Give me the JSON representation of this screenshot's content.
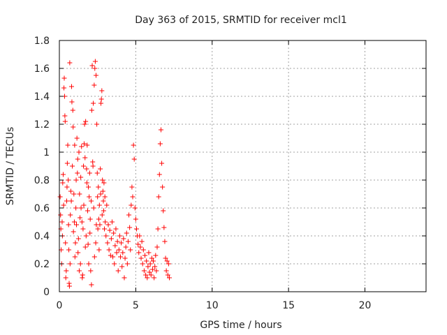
{
  "chart_data": {
    "type": "scatter",
    "title": "Day 363 of 2015, SRMTID for receiver mcl1",
    "xlabel": "GPS time / hours",
    "ylabel": "SRMTID / TECUs",
    "xlim": [
      0,
      24
    ],
    "ylim": [
      0,
      1.8
    ],
    "xticks": [
      0,
      5,
      10,
      15,
      20
    ],
    "xtick_labels": [
      "0",
      "5",
      "10",
      "15",
      "20"
    ],
    "yticks": [
      0,
      0.2,
      0.4,
      0.6,
      0.8,
      1.0,
      1.2,
      1.4,
      1.6,
      1.8
    ],
    "ytick_labels": [
      "0",
      "0.2",
      "0.4",
      "0.6",
      "0.8",
      "1",
      "1.2",
      "1.4",
      "1.6",
      "1.8"
    ],
    "grid": true,
    "marker": "+",
    "colors": {
      "series": "#ff0000",
      "grid": "#a0a0a0",
      "axes": "#000000"
    },
    "series": [
      {
        "name": "SRMTID",
        "points": [
          [
            0.05,
            0.68
          ],
          [
            0.08,
            0.55
          ],
          [
            0.1,
            0.45
          ],
          [
            0.12,
            0.3
          ],
          [
            0.15,
            0.2
          ],
          [
            0.18,
            0.5
          ],
          [
            0.2,
            0.4
          ],
          [
            0.22,
            0.78
          ],
          [
            0.25,
            0.84
          ],
          [
            0.28,
            0.62
          ],
          [
            0.3,
            1.46
          ],
          [
            0.32,
            1.53
          ],
          [
            0.34,
            1.4
          ],
          [
            0.36,
            1.26
          ],
          [
            0.38,
            1.22
          ],
          [
            0.4,
            0.35
          ],
          [
            0.42,
            0.1
          ],
          [
            0.45,
            0.15
          ],
          [
            0.48,
            0.65
          ],
          [
            0.5,
            0.75
          ],
          [
            0.52,
            0.92
          ],
          [
            0.55,
            1.05
          ],
          [
            0.58,
            0.8
          ],
          [
            0.6,
            0.48
          ],
          [
            0.62,
            0.3
          ],
          [
            0.64,
            0.06
          ],
          [
            0.66,
            0.04
          ],
          [
            0.68,
            1.64
          ],
          [
            0.7,
            0.2
          ],
          [
            0.72,
            0.55
          ],
          [
            0.75,
            0.72
          ],
          [
            0.78,
            0.65
          ],
          [
            0.8,
            1.47
          ],
          [
            0.82,
            1.36
          ],
          [
            0.85,
            0.9
          ],
          [
            0.88,
            1.3
          ],
          [
            0.9,
            1.18
          ],
          [
            0.92,
            0.43
          ],
          [
            0.95,
            0.7
          ],
          [
            0.98,
            0.5
          ],
          [
            1.0,
            1.05
          ],
          [
            1.02,
            0.25
          ],
          [
            1.05,
            0.35
          ],
          [
            1.08,
            0.6
          ],
          [
            1.1,
            0.8
          ],
          [
            1.12,
            0.48
          ],
          [
            1.15,
            1.1
          ],
          [
            1.18,
            0.85
          ],
          [
            1.2,
            0.95
          ],
          [
            1.22,
            0.28
          ],
          [
            1.25,
            0.38
          ],
          [
            1.28,
            1.0
          ],
          [
            1.3,
            0.15
          ],
          [
            1.32,
            0.7
          ],
          [
            1.35,
            0.53
          ],
          [
            1.38,
            0.2
          ],
          [
            1.4,
            0.82
          ],
          [
            1.42,
            0.6
          ],
          [
            1.45,
            1.04
          ],
          [
            1.48,
            0.5
          ],
          [
            1.5,
            0.1
          ],
          [
            1.52,
            0.12
          ],
          [
            1.55,
            0.45
          ],
          [
            1.58,
            0.9
          ],
          [
            1.6,
            0.62
          ],
          [
            1.62,
            1.06
          ],
          [
            1.65,
            1.2
          ],
          [
            1.68,
            0.96
          ],
          [
            1.7,
            0.32
          ],
          [
            1.72,
            1.22
          ],
          [
            1.75,
            0.4
          ],
          [
            1.78,
            0.88
          ],
          [
            1.8,
            0.78
          ],
          [
            1.82,
            1.05
          ],
          [
            1.85,
            0.58
          ],
          [
            1.88,
            0.34
          ],
          [
            1.9,
            0.75
          ],
          [
            1.92,
            0.2
          ],
          [
            1.95,
            0.68
          ],
          [
            1.98,
            0.85
          ],
          [
            2.0,
            0.42
          ],
          [
            2.02,
            0.52
          ],
          [
            2.05,
            0.15
          ],
          [
            2.08,
            0.65
          ],
          [
            2.1,
            0.05
          ],
          [
            2.12,
            1.3
          ],
          [
            2.15,
            1.62
          ],
          [
            2.18,
            0.93
          ],
          [
            2.2,
            0.9
          ],
          [
            2.22,
            1.35
          ],
          [
            2.25,
            0.6
          ],
          [
            2.28,
            1.48
          ],
          [
            2.3,
            0.25
          ],
          [
            2.32,
            1.6
          ],
          [
            2.35,
            1.65
          ],
          [
            2.38,
            0.35
          ],
          [
            2.4,
            1.55
          ],
          [
            2.42,
            0.48
          ],
          [
            2.45,
            1.2
          ],
          [
            2.48,
            0.85
          ],
          [
            2.5,
            0.68
          ],
          [
            2.52,
            0.45
          ],
          [
            2.55,
            0.75
          ],
          [
            2.58,
            0.52
          ],
          [
            2.6,
            0.3
          ],
          [
            2.62,
            0.62
          ],
          [
            2.65,
            0.48
          ],
          [
            2.68,
            0.88
          ],
          [
            2.7,
            0.7
          ],
          [
            2.72,
            1.35
          ],
          [
            2.75,
            1.38
          ],
          [
            2.78,
            1.44
          ],
          [
            2.8,
            0.55
          ],
          [
            2.82,
            0.8
          ],
          [
            2.85,
            0.72
          ],
          [
            2.88,
            0.65
          ],
          [
            2.9,
            0.58
          ],
          [
            2.92,
            0.78
          ],
          [
            2.95,
            0.45
          ],
          [
            2.98,
            0.68
          ],
          [
            3.0,
            0.5
          ],
          [
            3.05,
            0.4
          ],
          [
            3.1,
            0.62
          ],
          [
            3.15,
            0.35
          ],
          [
            3.2,
            0.48
          ],
          [
            3.25,
            0.3
          ],
          [
            3.3,
            0.44
          ],
          [
            3.35,
            0.26
          ],
          [
            3.4,
            0.38
          ],
          [
            3.45,
            0.5
          ],
          [
            3.5,
            0.25
          ],
          [
            3.55,
            0.42
          ],
          [
            3.6,
            0.2
          ],
          [
            3.65,
            0.33
          ],
          [
            3.7,
            0.45
          ],
          [
            3.75,
            0.28
          ],
          [
            3.8,
            0.36
          ],
          [
            3.85,
            0.15
          ],
          [
            3.9,
            0.3
          ],
          [
            3.95,
            0.4
          ],
          [
            4.0,
            0.25
          ],
          [
            4.05,
            0.35
          ],
          [
            4.1,
            0.18
          ],
          [
            4.15,
            0.28
          ],
          [
            4.2,
            0.38
          ],
          [
            4.25,
            0.1
          ],
          [
            4.3,
            0.24
          ],
          [
            4.35,
            0.32
          ],
          [
            4.4,
            0.42
          ],
          [
            4.45,
            0.2
          ],
          [
            4.5,
            0.36
          ],
          [
            4.55,
            0.55
          ],
          [
            4.6,
            0.46
          ],
          [
            4.65,
            0.3
          ],
          [
            4.7,
            0.62
          ],
          [
            4.75,
            0.75
          ],
          [
            4.8,
            0.68
          ],
          [
            4.85,
            1.05
          ],
          [
            4.9,
            0.95
          ],
          [
            4.95,
            0.6
          ],
          [
            5.0,
            0.52
          ],
          [
            5.05,
            0.45
          ],
          [
            5.1,
            0.4
          ],
          [
            5.15,
            0.34
          ],
          [
            5.2,
            0.28
          ],
          [
            5.25,
            0.4
          ],
          [
            5.3,
            0.32
          ],
          [
            5.35,
            0.24
          ],
          [
            5.4,
            0.36
          ],
          [
            5.45,
            0.2
          ],
          [
            5.5,
            0.3
          ],
          [
            5.55,
            0.15
          ],
          [
            5.6,
            0.26
          ],
          [
            5.65,
            0.12
          ],
          [
            5.7,
            0.22
          ],
          [
            5.75,
            0.1
          ],
          [
            5.8,
            0.18
          ],
          [
            5.85,
            0.28
          ],
          [
            5.9,
            0.14
          ],
          [
            5.95,
            0.2
          ],
          [
            6.0,
            0.12
          ],
          [
            6.05,
            0.24
          ],
          [
            6.1,
            0.16
          ],
          [
            6.15,
            0.22
          ],
          [
            6.2,
            0.1
          ],
          [
            6.25,
            0.18
          ],
          [
            6.3,
            0.26
          ],
          [
            6.35,
            0.15
          ],
          [
            6.4,
            0.32
          ],
          [
            6.45,
            0.45
          ],
          [
            6.5,
            0.68
          ],
          [
            6.55,
            0.84
          ],
          [
            6.6,
            1.06
          ],
          [
            6.65,
            1.16
          ],
          [
            6.7,
            0.92
          ],
          [
            6.75,
            0.75
          ],
          [
            6.8,
            0.58
          ],
          [
            6.85,
            0.46
          ],
          [
            6.9,
            0.36
          ],
          [
            6.95,
            0.24
          ],
          [
            7.0,
            0.15
          ],
          [
            7.05,
            0.22
          ],
          [
            7.1,
            0.12
          ],
          [
            7.15,
            0.2
          ],
          [
            7.2,
            0.1
          ]
        ]
      }
    ]
  }
}
